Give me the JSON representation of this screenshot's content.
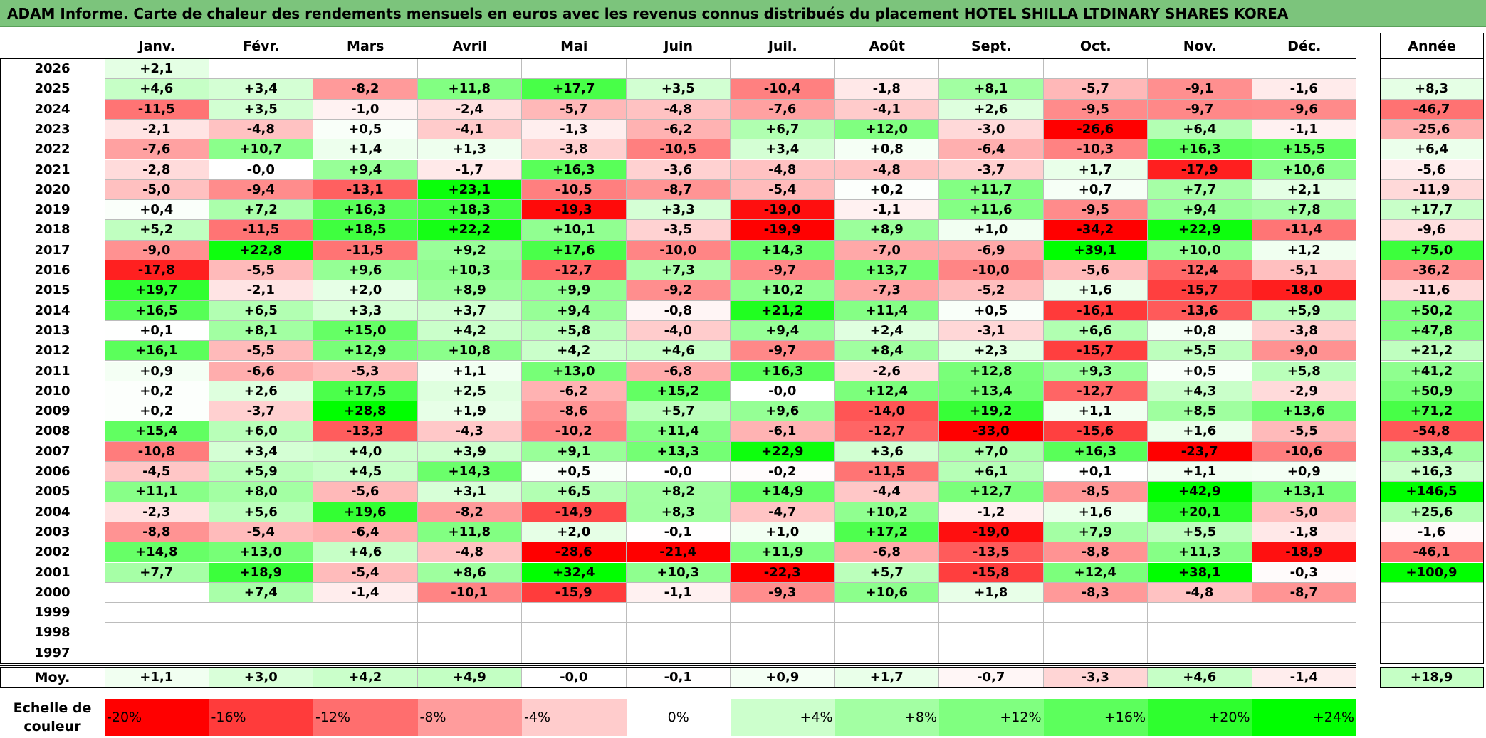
{
  "title": "ADAM Informe. Carte de chaleur des rendements mensuels en euros avec les revenus connus distribués du placement HOTEL SHILLA LTDINARY SHARES KOREA",
  "chart_data": {
    "type": "heatmap",
    "title": "ADAM Informe. Carte de chaleur des rendements mensuels en euros avec les revenus connus distribués du placement HOTEL SHILLA LTDINARY SHARES KOREA",
    "months": [
      "Janv.",
      "Févr.",
      "Mars",
      "Avril",
      "Mai",
      "Juin",
      "Juil.",
      "Août",
      "Sept.",
      "Oct.",
      "Nov.",
      "Déc."
    ],
    "annual_label": "Année",
    "rows": [
      {
        "year": "2026",
        "values": [
          "+2,1",
          "",
          "",
          "",
          "",
          "",
          "",
          "",
          "",
          "",
          "",
          ""
        ],
        "annual": ""
      },
      {
        "year": "2025",
        "values": [
          "+4,6",
          "+3,4",
          "-8,2",
          "+11,8",
          "+17,7",
          "+3,5",
          "-10,4",
          "-1,8",
          "+8,1",
          "-5,7",
          "-9,1",
          "-1,6"
        ],
        "annual": "+8,3"
      },
      {
        "year": "2024",
        "values": [
          "-11,5",
          "+3,5",
          "-1,0",
          "-2,4",
          "-5,7",
          "-4,8",
          "-7,6",
          "-4,1",
          "+2,6",
          "-9,5",
          "-9,7",
          "-9,6"
        ],
        "annual": "-46,7"
      },
      {
        "year": "2023",
        "values": [
          "-2,1",
          "-4,8",
          "+0,5",
          "-4,1",
          "-1,3",
          "-6,2",
          "+6,7",
          "+12,0",
          "-3,0",
          "-26,6",
          "+6,4",
          "-1,1"
        ],
        "annual": "-25,6"
      },
      {
        "year": "2022",
        "values": [
          "-7,6",
          "+10,7",
          "+1,4",
          "+1,3",
          "-3,8",
          "-10,5",
          "+3,4",
          "+0,8",
          "-6,4",
          "-10,3",
          "+16,3",
          "+15,5"
        ],
        "annual": "+6,4"
      },
      {
        "year": "2021",
        "values": [
          "-2,8",
          "-0,0",
          "+9,4",
          "-1,7",
          "+16,3",
          "-3,6",
          "-4,8",
          "-4,8",
          "-3,7",
          "+1,7",
          "-17,9",
          "+10,6"
        ],
        "annual": "-5,6"
      },
      {
        "year": "2020",
        "values": [
          "-5,0",
          "-9,4",
          "-13,1",
          "+23,1",
          "-10,5",
          "-8,7",
          "-5,4",
          "+0,2",
          "+11,7",
          "+0,7",
          "+7,7",
          "+2,1"
        ],
        "annual": "-11,9"
      },
      {
        "year": "2019",
        "values": [
          "+0,4",
          "+7,2",
          "+16,3",
          "+18,3",
          "-19,3",
          "+3,3",
          "-19,0",
          "-1,1",
          "+11,6",
          "-9,5",
          "+9,4",
          "+7,8"
        ],
        "annual": "+17,7"
      },
      {
        "year": "2018",
        "values": [
          "+5,2",
          "-11,5",
          "+18,5",
          "+22,2",
          "+10,1",
          "-3,5",
          "-19,9",
          "+8,9",
          "+1,0",
          "-34,2",
          "+22,9",
          "-11,4"
        ],
        "annual": "-9,6"
      },
      {
        "year": "2017",
        "values": [
          "-9,0",
          "+22,8",
          "-11,5",
          "+9,2",
          "+17,6",
          "-10,0",
          "+14,3",
          "-7,0",
          "-6,9",
          "+39,1",
          "+10,0",
          "+1,2"
        ],
        "annual": "+75,0"
      },
      {
        "year": "2016",
        "values": [
          "-17,8",
          "-5,5",
          "+9,6",
          "+10,3",
          "-12,7",
          "+7,3",
          "-9,7",
          "+13,7",
          "-10,0",
          "-5,6",
          "-12,4",
          "-5,1"
        ],
        "annual": "-36,2"
      },
      {
        "year": "2015",
        "values": [
          "+19,7",
          "-2,1",
          "+2,0",
          "+8,9",
          "+9,9",
          "-9,2",
          "+10,2",
          "-7,3",
          "-5,2",
          "+1,6",
          "-15,7",
          "-18,0"
        ],
        "annual": "-11,6"
      },
      {
        "year": "2014",
        "values": [
          "+16,5",
          "+6,5",
          "+3,3",
          "+3,7",
          "+9,4",
          "-0,8",
          "+21,2",
          "+11,4",
          "+0,5",
          "-16,1",
          "-13,6",
          "+5,9"
        ],
        "annual": "+50,2"
      },
      {
        "year": "2013",
        "values": [
          "+0,1",
          "+8,1",
          "+15,0",
          "+4,2",
          "+5,8",
          "-4,0",
          "+9,4",
          "+2,4",
          "-3,1",
          "+6,6",
          "+0,8",
          "-3,8"
        ],
        "annual": "+47,8"
      },
      {
        "year": "2012",
        "values": [
          "+16,1",
          "-5,5",
          "+12,9",
          "+10,8",
          "+4,2",
          "+4,6",
          "-9,7",
          "+8,4",
          "+2,3",
          "-15,7",
          "+5,5",
          "-9,0"
        ],
        "annual": "+21,2"
      },
      {
        "year": "2011",
        "values": [
          "+0,9",
          "-6,6",
          "-5,3",
          "+1,1",
          "+13,0",
          "-6,8",
          "+16,3",
          "-2,6",
          "+12,8",
          "+9,3",
          "+0,5",
          "+5,8"
        ],
        "annual": "+41,2"
      },
      {
        "year": "2010",
        "values": [
          "+0,2",
          "+2,6",
          "+17,5",
          "+2,5",
          "-6,2",
          "+15,2",
          "-0,0",
          "+12,4",
          "+13,4",
          "-12,7",
          "+4,3",
          "-2,9"
        ],
        "annual": "+50,9"
      },
      {
        "year": "2009",
        "values": [
          "+0,2",
          "-3,7",
          "+28,8",
          "+1,9",
          "-8,6",
          "+5,7",
          "+9,6",
          "-14,0",
          "+19,2",
          "+1,1",
          "+8,5",
          "+13,6"
        ],
        "annual": "+71,2"
      },
      {
        "year": "2008",
        "values": [
          "+15,4",
          "+6,0",
          "-13,3",
          "-4,3",
          "-10,2",
          "+11,4",
          "-6,1",
          "-12,7",
          "-33,0",
          "-15,6",
          "+1,6",
          "-5,5"
        ],
        "annual": "-54,8"
      },
      {
        "year": "2007",
        "values": [
          "-10,8",
          "+3,4",
          "+4,0",
          "+3,9",
          "+9,1",
          "+13,3",
          "+22,9",
          "+3,6",
          "+7,0",
          "+16,3",
          "-23,7",
          "-10,6"
        ],
        "annual": "+33,4"
      },
      {
        "year": "2006",
        "values": [
          "-4,5",
          "+5,9",
          "+4,5",
          "+14,3",
          "+0,5",
          "-0,0",
          "-0,2",
          "-11,5",
          "+6,1",
          "+0,1",
          "+1,1",
          "+0,9"
        ],
        "annual": "+16,3"
      },
      {
        "year": "2005",
        "values": [
          "+11,1",
          "+8,0",
          "-5,6",
          "+3,1",
          "+6,5",
          "+8,2",
          "+14,9",
          "-4,4",
          "+12,7",
          "-8,5",
          "+42,9",
          "+13,1"
        ],
        "annual": "+146,5"
      },
      {
        "year": "2004",
        "values": [
          "-2,3",
          "+5,6",
          "+19,6",
          "-8,2",
          "-14,9",
          "+8,3",
          "-4,7",
          "+10,2",
          "-1,2",
          "+1,6",
          "+20,1",
          "-5,0"
        ],
        "annual": "+25,6"
      },
      {
        "year": "2003",
        "values": [
          "-8,8",
          "-5,4",
          "-6,4",
          "+11,8",
          "+2,0",
          "-0,1",
          "+1,0",
          "+17,2",
          "-19,0",
          "+7,9",
          "+5,5",
          "-1,8"
        ],
        "annual": "-1,6"
      },
      {
        "year": "2002",
        "values": [
          "+14,8",
          "+13,0",
          "+4,6",
          "-4,8",
          "-28,6",
          "-21,4",
          "+11,9",
          "-6,8",
          "-13,5",
          "-8,8",
          "+11,3",
          "-18,9"
        ],
        "annual": "-46,1"
      },
      {
        "year": "2001",
        "values": [
          "+7,7",
          "+18,9",
          "-5,4",
          "+8,6",
          "+32,4",
          "+10,3",
          "-22,3",
          "+5,7",
          "-15,8",
          "+12,4",
          "+38,1",
          "-0,3"
        ],
        "annual": "+100,9"
      },
      {
        "year": "2000",
        "values": [
          "",
          "+7,4",
          "-1,4",
          "-10,1",
          "-15,9",
          "-1,1",
          "-9,3",
          "+10,6",
          "+1,8",
          "-8,3",
          "-4,8",
          "-8,7"
        ],
        "annual": ""
      },
      {
        "year": "1999",
        "values": [
          "",
          "",
          "",
          "",
          "",
          "",
          "",
          "",
          "",
          "",
          "",
          ""
        ],
        "annual": ""
      },
      {
        "year": "1998",
        "values": [
          "",
          "",
          "",
          "",
          "",
          "",
          "",
          "",
          "",
          "",
          "",
          ""
        ],
        "annual": ""
      },
      {
        "year": "1997",
        "values": [
          "",
          "",
          "",
          "",
          "",
          "",
          "",
          "",
          "",
          "",
          "",
          ""
        ],
        "annual": ""
      }
    ],
    "average": {
      "label": "Moy.",
      "values": [
        "+1,1",
        "+3,0",
        "+4,2",
        "+4,9",
        "-0,0",
        "-0,1",
        "+0,9",
        "+1,7",
        "-0,7",
        "-3,3",
        "+4,6",
        "-1,4"
      ],
      "annual": "+18,9"
    },
    "color_scale": {
      "label": "Echelle de couleur",
      "stops": [
        "-20%",
        "-16%",
        "-12%",
        "-8%",
        "-4%",
        "0%",
        "+4%",
        "+8%",
        "+12%",
        "+16%",
        "+20%",
        "+24%"
      ],
      "colors": [
        "#ff0000",
        "#ff3b3b",
        "#ff6e6e",
        "#ff9c9c",
        "#ffcccc",
        "#ffffff",
        "#ccffcc",
        "#a3ffa3",
        "#80ff80",
        "#5cff5c",
        "#2eff2e",
        "#00ff00"
      ]
    }
  }
}
